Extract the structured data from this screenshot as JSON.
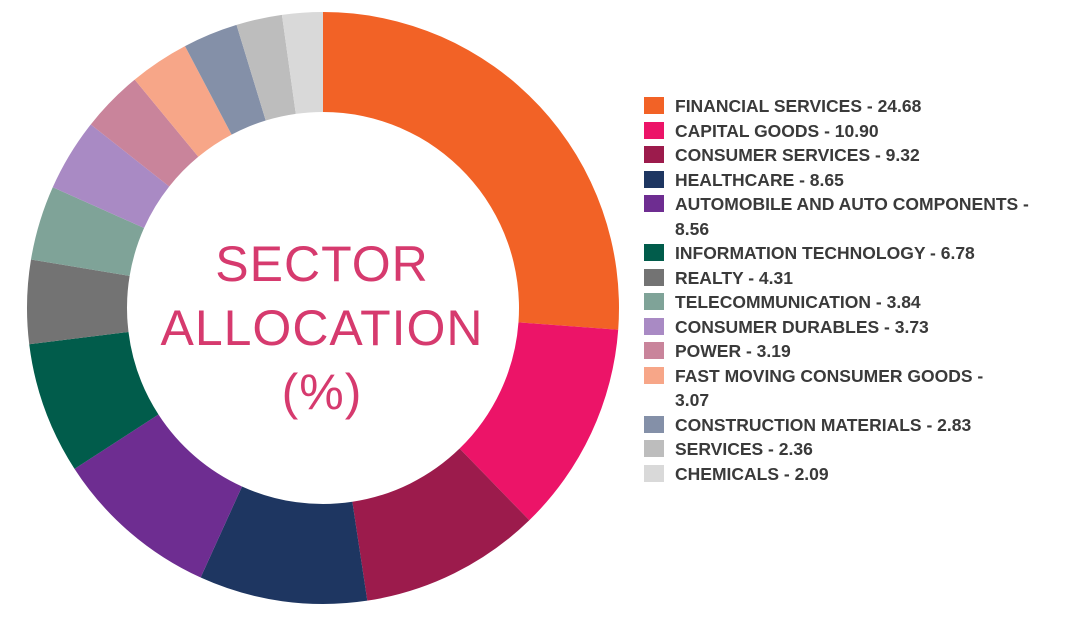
{
  "chart_data": {
    "type": "pie",
    "title_lines": [
      "SECTOR",
      "ALLOCATION",
      "(%)"
    ],
    "legend_position": "right",
    "slices": [
      {
        "label": "FINANCIAL SERVICES",
        "value": 24.68,
        "color": "#f26226",
        "legend_text": "FINANCIAL SERVICES - 24.68"
      },
      {
        "label": "CAPITAL GOODS",
        "value": 10.9,
        "color": "#ec1468",
        "legend_text": "CAPITAL GOODS - 10.90"
      },
      {
        "label": "CONSUMER SERVICES",
        "value": 9.32,
        "color": "#9c1b4c",
        "legend_text": "CONSUMER SERVICES - 9.32"
      },
      {
        "label": "HEALTHCARE",
        "value": 8.65,
        "color": "#1e3661",
        "legend_text": "HEALTHCARE - 8.65"
      },
      {
        "label": "AUTOMOBILE AND AUTO COMPONENTS",
        "value": 8.56,
        "color": "#6e2d91",
        "legend_text": "AUTOMOBILE AND AUTO COMPONENTS -\n8.56"
      },
      {
        "label": "INFORMATION TECHNOLOGY",
        "value": 6.78,
        "color": "#015c4b",
        "legend_text": "INFORMATION TECHNOLOGY - 6.78"
      },
      {
        "label": "REALTY",
        "value": 4.31,
        "color": "#737373",
        "legend_text": "REALTY - 4.31"
      },
      {
        "label": "TELECOMMUNICATION",
        "value": 3.84,
        "color": "#7fa398",
        "legend_text": "TELECOMMUNICATION - 3.84"
      },
      {
        "label": "CONSUMER DURABLES",
        "value": 3.73,
        "color": "#a98ac4",
        "legend_text": "CONSUMER DURABLES - 3.73"
      },
      {
        "label": "POWER",
        "value": 3.19,
        "color": "#c9849b",
        "legend_text": "POWER - 3.19"
      },
      {
        "label": "FAST MOVING CONSUMER GOODS",
        "value": 3.07,
        "color": "#f7a688",
        "legend_text": "FAST MOVING CONSUMER GOODS -\n3.07"
      },
      {
        "label": "CONSTRUCTION MATERIALS",
        "value": 2.83,
        "color": "#8490a8",
        "legend_text": "CONSTRUCTION MATERIALS - 2.83"
      },
      {
        "label": "SERVICES",
        "value": 2.36,
        "color": "#bdbdbd",
        "legend_text": "SERVICES - 2.36"
      },
      {
        "label": "CHEMICALS",
        "value": 2.09,
        "color": "#d9d9d9",
        "legend_text": "CHEMICALS - 2.09"
      }
    ]
  }
}
